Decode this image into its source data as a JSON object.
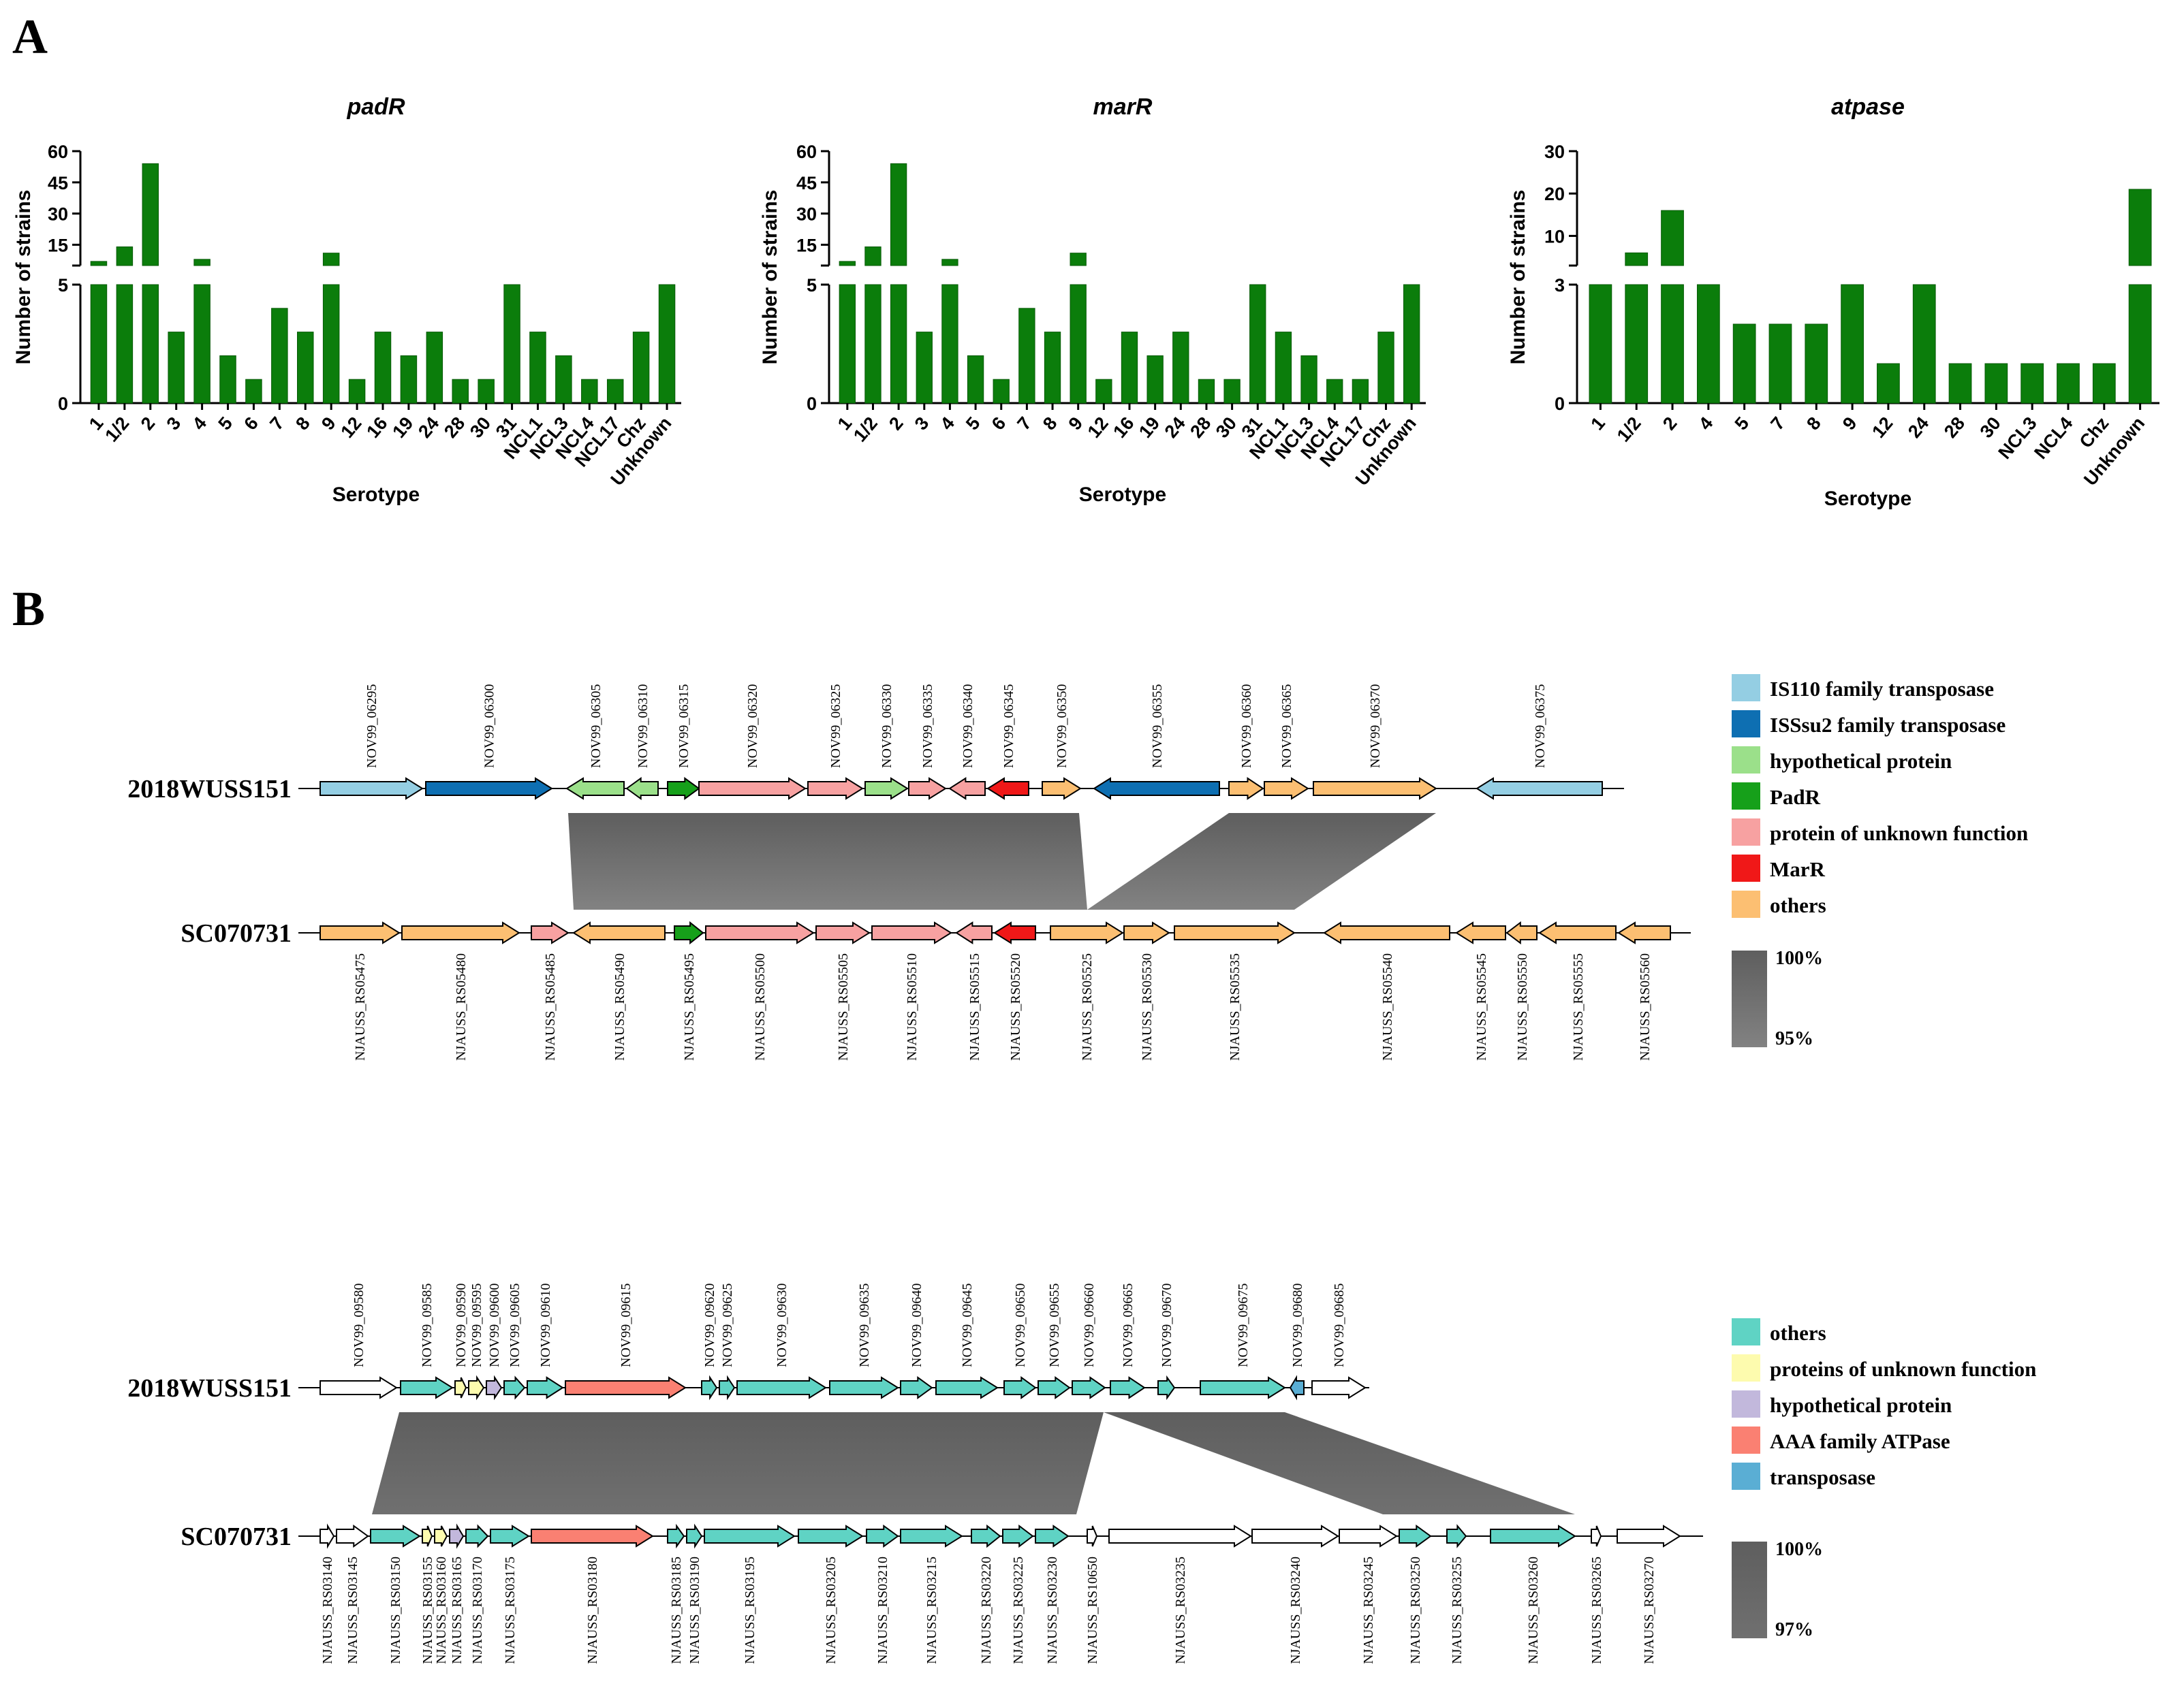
{
  "panels": {
    "a": "A",
    "b": "B"
  },
  "colors": {
    "bar": "#0b7d0b",
    "syntenyLight": "#7f7f7f",
    "syntenyDark": "#666666"
  },
  "chart_data": [
    {
      "type": "bar",
      "title": "padR",
      "xlabel": "Serotype",
      "ylabel": "Number of strains",
      "axis_break": {
        "lower_range": [
          0,
          5
        ],
        "upper_range": [
          5,
          60
        ],
        "lower_ticks": [
          "0",
          "5"
        ],
        "upper_ticks": [
          "15",
          "30",
          "45",
          "60"
        ]
      },
      "categories": [
        "1",
        "1/2",
        "2",
        "3",
        "4",
        "5",
        "6",
        "7",
        "8",
        "9",
        "12",
        "16",
        "19",
        "24",
        "28",
        "30",
        "31",
        "NCL1",
        "NCL3",
        "NCL4",
        "NCL17",
        "Chz",
        "Unknown"
      ],
      "values": [
        7,
        14,
        54,
        3,
        8,
        2,
        1,
        4,
        3,
        11,
        1,
        3,
        2,
        3,
        1,
        1,
        5,
        3,
        2,
        1,
        1,
        3,
        5
      ]
    },
    {
      "type": "bar",
      "title": "marR",
      "xlabel": "Serotype",
      "ylabel": "Number of strains",
      "axis_break": {
        "lower_range": [
          0,
          5
        ],
        "upper_range": [
          5,
          60
        ],
        "lower_ticks": [
          "0",
          "5"
        ],
        "upper_ticks": [
          "15",
          "30",
          "45",
          "60"
        ]
      },
      "categories": [
        "1",
        "1/2",
        "2",
        "3",
        "4",
        "5",
        "6",
        "7",
        "8",
        "9",
        "12",
        "16",
        "19",
        "24",
        "28",
        "30",
        "31",
        "NCL1",
        "NCL3",
        "NCL4",
        "NCL17",
        "Chz",
        "Unknown"
      ],
      "values": [
        7,
        14,
        54,
        3,
        8,
        2,
        1,
        4,
        3,
        11,
        1,
        3,
        2,
        3,
        1,
        1,
        5,
        3,
        2,
        1,
        1,
        3,
        5
      ]
    },
    {
      "type": "bar",
      "title": "atpase",
      "xlabel": "Serotype",
      "ylabel": "Number of strains",
      "axis_break": {
        "lower_range": [
          0,
          3
        ],
        "upper_range": [
          3,
          30
        ],
        "lower_ticks": [
          "0",
          "3"
        ],
        "upper_ticks": [
          "10",
          "20",
          "30"
        ]
      },
      "categories": [
        "1",
        "1/2",
        "2",
        "4",
        "5",
        "7",
        "8",
        "9",
        "12",
        "24",
        "28",
        "30",
        "NCL3",
        "NCL4",
        "Chz",
        "Unknown"
      ],
      "values": [
        3,
        6,
        16,
        3,
        2,
        2,
        2,
        3,
        1,
        3,
        1,
        1,
        1,
        1,
        1,
        21
      ]
    }
  ],
  "loci": [
    {
      "strain_top": "2018WUSS151",
      "strain_bottom": "SC070731",
      "top_genes": [
        {
          "id": "NOV99_06295",
          "color": "#94cee3",
          "dir": 1
        },
        {
          "id": "NOV99_06300",
          "color": "#0e6fb2",
          "dir": 1
        },
        {
          "id": "NOV99_06305",
          "color": "#9be08a",
          "dir": -1
        },
        {
          "id": "NOV99_06310",
          "color": "#9be08a",
          "dir": -1
        },
        {
          "id": "NOV99_06315",
          "color": "#16a01a",
          "dir": 1
        },
        {
          "id": "NOV99_06320",
          "color": "#f7a1a1",
          "dir": 1
        },
        {
          "id": "NOV99_06325",
          "color": "#f7a1a1",
          "dir": 1
        },
        {
          "id": "NOV99_06330",
          "color": "#9be08a",
          "dir": 1
        },
        {
          "id": "NOV99_06335",
          "color": "#f7a1a1",
          "dir": 1
        },
        {
          "id": "NOV99_06340",
          "color": "#f7a1a1",
          "dir": -1
        },
        {
          "id": "NOV99_06345",
          "color": "#f01818",
          "dir": -1
        },
        {
          "id": "NOV99_06350",
          "color": "#fcbf72",
          "dir": 1
        },
        {
          "id": "NOV99_06355",
          "color": "#0e6fb2",
          "dir": -1
        },
        {
          "id": "NOV99_06360",
          "color": "#fcbf72",
          "dir": 1
        },
        {
          "id": "NOV99_06365",
          "color": "#fcbf72",
          "dir": 1
        },
        {
          "id": "NOV99_06370",
          "color": "#fcbf72",
          "dir": 1
        },
        {
          "id": "NOV99_06375",
          "color": "#94cee3",
          "dir": -1
        }
      ],
      "bottom_genes": [
        {
          "id": "NJAUSS_RS05475",
          "color": "#fcbf72",
          "dir": 1
        },
        {
          "id": "NJAUSS_RS05480",
          "color": "#fcbf72",
          "dir": 1
        },
        {
          "id": "NJAUSS_RS05485",
          "color": "#f7a1a1",
          "dir": 1
        },
        {
          "id": "NJAUSS_RS05490",
          "color": "#fcbf72",
          "dir": -1
        },
        {
          "id": "NJAUSS_RS05495",
          "color": "#16a01a",
          "dir": 1
        },
        {
          "id": "NJAUSS_RS05500",
          "color": "#f7a1a1",
          "dir": 1
        },
        {
          "id": "NJAUSS_RS05505",
          "color": "#f7a1a1",
          "dir": 1
        },
        {
          "id": "NJAUSS_RS05510",
          "color": "#f7a1a1",
          "dir": 1
        },
        {
          "id": "NJAUSS_RS05515",
          "color": "#f7a1a1",
          "dir": -1
        },
        {
          "id": "NJAUSS_RS05520",
          "color": "#f01818",
          "dir": -1
        },
        {
          "id": "NJAUSS_RS05525",
          "color": "#fcbf72",
          "dir": 1
        },
        {
          "id": "NJAUSS_RS05530",
          "color": "#fcbf72",
          "dir": 1
        },
        {
          "id": "NJAUSS_RS05535",
          "color": "#fcbf72",
          "dir": 1
        },
        {
          "id": "NJAUSS_RS05540",
          "color": "#fcbf72",
          "dir": -1
        },
        {
          "id": "NJAUSS_RS05545",
          "color": "#fcbf72",
          "dir": -1
        },
        {
          "id": "NJAUSS_RS05550",
          "color": "#fcbf72",
          "dir": -1
        },
        {
          "id": "NJAUSS_RS05555",
          "color": "#fcbf72",
          "dir": -1
        },
        {
          "id": "NJAUSS_RS05560",
          "color": "#fcbf72",
          "dir": -1
        }
      ],
      "legend": [
        {
          "label": "IS110 family transposase",
          "color": "#94cee3"
        },
        {
          "label": "ISSsu2 family transposase",
          "color": "#0e6fb2"
        },
        {
          "label": "hypothetical protein",
          "color": "#9be08a"
        },
        {
          "label": "PadR",
          "color": "#16a01a"
        },
        {
          "label": "protein of unknown function",
          "color": "#f7a1a1"
        },
        {
          "label": "MarR",
          "color": "#f01818"
        },
        {
          "label": "others",
          "color": "#fcbf72"
        }
      ],
      "scale": {
        "max": "100%",
        "min": "95%"
      }
    },
    {
      "strain_top": "2018WUSS151",
      "strain_bottom": "SC070731",
      "top_genes": [
        {
          "id": "NOV99_09580",
          "color": "#ffffff",
          "dir": 1
        },
        {
          "id": "NOV99_09585",
          "color": "#5fd3c4",
          "dir": 1
        },
        {
          "id": "NOV99_09590",
          "color": "#fdfbae",
          "dir": 1
        },
        {
          "id": "NOV99_09595",
          "color": "#fdfbae",
          "dir": 1
        },
        {
          "id": "NOV99_09600",
          "color": "#c2b8dc",
          "dir": 1
        },
        {
          "id": "NOV99_09605",
          "color": "#5fd3c4",
          "dir": 1
        },
        {
          "id": "NOV99_09610",
          "color": "#5fd3c4",
          "dir": 1
        },
        {
          "id": "NOV99_09615",
          "color": "#fa8072",
          "dir": 1
        },
        {
          "id": "NOV99_09620",
          "color": "#5fd3c4",
          "dir": 1
        },
        {
          "id": "NOV99_09625",
          "color": "#5fd3c4",
          "dir": 1
        },
        {
          "id": "NOV99_09630",
          "color": "#5fd3c4",
          "dir": 1
        },
        {
          "id": "NOV99_09635",
          "color": "#5fd3c4",
          "dir": 1
        },
        {
          "id": "NOV99_09640",
          "color": "#5fd3c4",
          "dir": 1
        },
        {
          "id": "NOV99_09645",
          "color": "#5fd3c4",
          "dir": 1
        },
        {
          "id": "NOV99_09650",
          "color": "#5fd3c4",
          "dir": 1
        },
        {
          "id": "NOV99_09655",
          "color": "#5fd3c4",
          "dir": 1
        },
        {
          "id": "NOV99_09660",
          "color": "#5fd3c4",
          "dir": 1
        },
        {
          "id": "NOV99_09665",
          "color": "#5fd3c4",
          "dir": 1
        },
        {
          "id": "NOV99_09670",
          "color": "#5fd3c4",
          "dir": 1
        },
        {
          "id": "NOV99_09675",
          "color": "#5fd3c4",
          "dir": 1
        },
        {
          "id": "NOV99_09680",
          "color": "#5aaed4",
          "dir": -1
        },
        {
          "id": "NOV99_09685",
          "color": "#ffffff",
          "dir": 1
        }
      ],
      "bottom_genes": [
        {
          "id": "NJAUSS_RS03140",
          "color": "#ffffff",
          "dir": 1
        },
        {
          "id": "NJAUSS_RS03145",
          "color": "#ffffff",
          "dir": 1
        },
        {
          "id": "NJAUSS_RS03150",
          "color": "#5fd3c4",
          "dir": 1
        },
        {
          "id": "NJAUSS_RS03155",
          "color": "#fdfbae",
          "dir": 1
        },
        {
          "id": "NJAUSS_RS03160",
          "color": "#fdfbae",
          "dir": 1
        },
        {
          "id": "NJAUSS_RS03165",
          "color": "#c2b8dc",
          "dir": 1
        },
        {
          "id": "NJAUSS_RS03170",
          "color": "#5fd3c4",
          "dir": 1
        },
        {
          "id": "NJAUSS_RS03175",
          "color": "#5fd3c4",
          "dir": 1
        },
        {
          "id": "NJAUSS_RS03180",
          "color": "#fa8072",
          "dir": 1
        },
        {
          "id": "NJAUSS_RS03185",
          "color": "#5fd3c4",
          "dir": 1
        },
        {
          "id": "NJAUSS_RS03190",
          "color": "#5fd3c4",
          "dir": 1
        },
        {
          "id": "NJAUSS_RS03195",
          "color": "#5fd3c4",
          "dir": 1
        },
        {
          "id": "NJAUSS_RS03205",
          "color": "#5fd3c4",
          "dir": 1
        },
        {
          "id": "NJAUSS_RS03210",
          "color": "#5fd3c4",
          "dir": 1
        },
        {
          "id": "NJAUSS_RS03215",
          "color": "#5fd3c4",
          "dir": 1
        },
        {
          "id": "NJAUSS_RS03220",
          "color": "#5fd3c4",
          "dir": 1
        },
        {
          "id": "NJAUSS_RS03225",
          "color": "#5fd3c4",
          "dir": 1
        },
        {
          "id": "NJAUSS_RS03230",
          "color": "#5fd3c4",
          "dir": 1
        },
        {
          "id": "NJAUSS_RS10650",
          "color": "#ffffff",
          "dir": 1
        },
        {
          "id": "NJAUSS_RS03235",
          "color": "#ffffff",
          "dir": 1
        },
        {
          "id": "NJAUSS_RS03240",
          "color": "#ffffff",
          "dir": 1
        },
        {
          "id": "NJAUSS_RS03245",
          "color": "#ffffff",
          "dir": 1
        },
        {
          "id": "NJAUSS_RS03250",
          "color": "#5fd3c4",
          "dir": 1
        },
        {
          "id": "NJAUSS_RS03255",
          "color": "#5fd3c4",
          "dir": 1
        },
        {
          "id": "NJAUSS_RS03260",
          "color": "#5fd3c4",
          "dir": 1
        },
        {
          "id": "NJAUSS_RS03265",
          "color": "#ffffff",
          "dir": 1
        },
        {
          "id": "NJAUSS_RS03270",
          "color": "#ffffff",
          "dir": 1
        }
      ],
      "legend": [
        {
          "label": "others",
          "color": "#5fd3c4"
        },
        {
          "label": "proteins of unknown function",
          "color": "#fdfbae"
        },
        {
          "label": "hypothetical protein",
          "color": "#c2b8dc"
        },
        {
          "label": "AAA family ATPase",
          "color": "#fa8072"
        },
        {
          "label": "transposase",
          "color": "#5aaed4"
        }
      ],
      "scale": {
        "max": "100%",
        "min": "97%"
      }
    }
  ]
}
